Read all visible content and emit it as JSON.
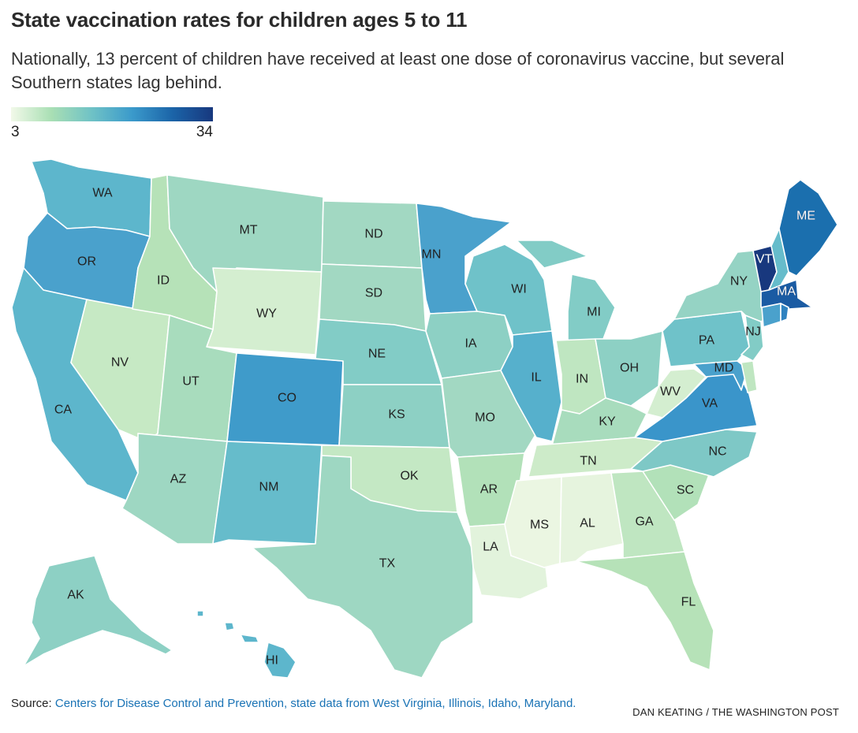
{
  "header": {
    "title": "State vaccination rates for children ages 5 to 11",
    "subtitle": "Nationally, 13 percent of children have received at least one dose of coronavirus vaccine, but several Southern states lag behind."
  },
  "legend": {
    "min": "3",
    "max": "34",
    "colors": [
      "#f2f9e9",
      "#a9dfb4",
      "#6fc2c6",
      "#3b9acb",
      "#1b64a8",
      "#18387e"
    ]
  },
  "chart_data": {
    "type": "choropleth",
    "scale_min": 3,
    "scale_max": 34,
    "colors": {
      "WA": "#5db6cc",
      "OR": "#4aa1cc",
      "CA": "#5db6cc",
      "NV": "#c6e9c4",
      "ID": "#b6e2b8",
      "MT": "#9ed7c2",
      "WY": "#d4eed0",
      "UT": "#a8dcbd",
      "AZ": "#9ed7c2",
      "CO": "#3f9bca",
      "NM": "#66bccb",
      "ND": "#a2d8c2",
      "SD": "#a2d8c2",
      "NE": "#82ccc6",
      "KS": "#8dd0c4",
      "OK": "#c4e8c4",
      "TX": "#9ed7c2",
      "MN": "#4aa1cc",
      "IA": "#8dd0c4",
      "MO": "#a2d8c2",
      "AR": "#b2e1b9",
      "LA": "#e2f3dc",
      "WI": "#6fc2c9",
      "IL": "#56b0cc",
      "MI": "#82ccc6",
      "IN": "#bfe6c1",
      "OH": "#8dd0c4",
      "KY": "#a8dcbd",
      "TN": "#cdebc9",
      "MS": "#ebf6e2",
      "AL": "#e6f4de",
      "GA": "#bfe6c1",
      "FL": "#b6e2b8",
      "SC": "#b2e1b9",
      "NC": "#7ec8c6",
      "VA": "#3a95ca",
      "WV": "#d4eed0",
      "PA": "#6fc2c9",
      "NY": "#95d3c4",
      "VT": "#18387e",
      "NH": "#66bccb",
      "ME": "#1b6fae",
      "MA": "#1a5ba3",
      "RI": "#2f82c0",
      "CT": "#4aa1cc",
      "NJ": "#82ccc6",
      "DE": "#bfe6c1",
      "MD": "#4aa1cc",
      "AK": "#8dd0c4",
      "HI": "#5db6cc"
    },
    "labels": {
      "WA": "WA",
      "OR": "OR",
      "CA": "CA",
      "NV": "NV",
      "ID": "ID",
      "MT": "MT",
      "WY": "WY",
      "UT": "UT",
      "AZ": "AZ",
      "CO": "CO",
      "NM": "NM",
      "ND": "ND",
      "SD": "SD",
      "NE": "NE",
      "KS": "KS",
      "OK": "OK",
      "TX": "TX",
      "MN": "MN",
      "IA": "IA",
      "MO": "MO",
      "AR": "AR",
      "LA": "LA",
      "WI": "WI",
      "IL": "IL",
      "MI": "MI",
      "IN": "IN",
      "OH": "OH",
      "KY": "KY",
      "TN": "TN",
      "MS": "MS",
      "AL": "AL",
      "GA": "GA",
      "FL": "FL",
      "SC": "SC",
      "NC": "NC",
      "VA": "VA",
      "WV": "WV",
      "PA": "PA",
      "NY": "NY",
      "VT": "VT",
      "ME": "ME",
      "MA": "MA",
      "NJ": "NJ",
      "MD": "MD",
      "AK": "AK",
      "HI": "HI"
    }
  },
  "footer": {
    "source_prefix": "Source: ",
    "source_text": "Centers for Disease Control and Prevention, state data from West Virginia, Illinois, Idaho, Maryland.",
    "credit": "DAN KEATING / THE WASHINGTON POST"
  }
}
